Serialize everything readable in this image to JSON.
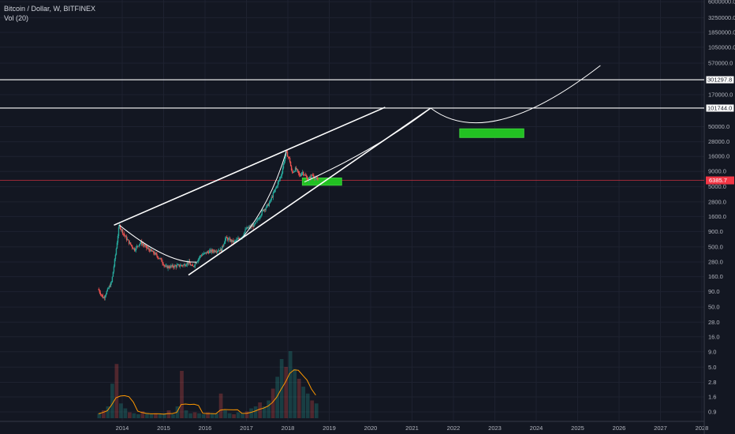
{
  "legend": {
    "symbol": "Bitcoin / Dollar, W, BITFINEX",
    "volume": "Vol (20)"
  },
  "colors": {
    "background": "#131722",
    "grid": "#1e2230",
    "up_candle": "#26a69a",
    "down_candle": "#ef5350",
    "drawing_line": "#ffffff",
    "target_box": "#22c122",
    "current_price": "#f23645",
    "volume_ma": "#ff9800"
  },
  "chart_data": {
    "type": "candlestick",
    "y_scale": "log",
    "price_axis_labels": [
      "6000000.0",
      "3250000.0",
      "1850000.0",
      "1050000.0",
      "570000.0",
      "170000.0",
      "50000.0",
      "28000.0",
      "16000.0",
      "9000.0",
      "5000.0",
      "2800.0",
      "1600.0",
      "900.0",
      "500.0",
      "280.0",
      "160.0",
      "90.0",
      "50.0",
      "28.0",
      "16.0",
      "9.0",
      "5.0",
      "2.8",
      "1.6",
      "0.9"
    ],
    "x_axis_labels": [
      "2014",
      "2015",
      "2016",
      "2017",
      "2018",
      "2019",
      "2020",
      "2021",
      "2022",
      "2023",
      "2024",
      "2025",
      "2026",
      "2027",
      "2028"
    ],
    "horizontal_levels": [
      {
        "label": "301297.8",
        "value": 301297.8
      },
      {
        "label": "101744.0",
        "value": 101744.0
      }
    ],
    "current_price": {
      "label": "6385.7",
      "value": 6385.7
    },
    "price_path": [
      {
        "t": 2013.42,
        "p": 100
      },
      {
        "t": 2013.55,
        "p": 70
      },
      {
        "t": 2013.75,
        "p": 130
      },
      {
        "t": 2013.85,
        "p": 400
      },
      {
        "t": 2013.93,
        "p": 1150
      },
      {
        "t": 2014.05,
        "p": 800
      },
      {
        "t": 2014.15,
        "p": 620
      },
      {
        "t": 2014.3,
        "p": 450
      },
      {
        "t": 2014.45,
        "p": 600
      },
      {
        "t": 2014.6,
        "p": 480
      },
      {
        "t": 2014.8,
        "p": 380
      },
      {
        "t": 2014.95,
        "p": 300
      },
      {
        "t": 2015.05,
        "p": 230
      },
      {
        "t": 2015.3,
        "p": 240
      },
      {
        "t": 2015.5,
        "p": 250
      },
      {
        "t": 2015.6,
        "p": 280
      },
      {
        "t": 2015.7,
        "p": 230
      },
      {
        "t": 2015.9,
        "p": 360
      },
      {
        "t": 2016.1,
        "p": 420
      },
      {
        "t": 2016.4,
        "p": 450
      },
      {
        "t": 2016.5,
        "p": 700
      },
      {
        "t": 2016.7,
        "p": 600
      },
      {
        "t": 2016.9,
        "p": 750
      },
      {
        "t": 2017.0,
        "p": 1000
      },
      {
        "t": 2017.2,
        "p": 1150
      },
      {
        "t": 2017.4,
        "p": 2000
      },
      {
        "t": 2017.55,
        "p": 2600
      },
      {
        "t": 2017.7,
        "p": 4500
      },
      {
        "t": 2017.85,
        "p": 8000
      },
      {
        "t": 2017.96,
        "p": 19000
      },
      {
        "t": 2018.05,
        "p": 14000
      },
      {
        "t": 2018.1,
        "p": 8500
      },
      {
        "t": 2018.2,
        "p": 10000
      },
      {
        "t": 2018.3,
        "p": 7500
      },
      {
        "t": 2018.35,
        "p": 9000
      },
      {
        "t": 2018.5,
        "p": 6500
      },
      {
        "t": 2018.6,
        "p": 8000
      },
      {
        "t": 2018.72,
        "p": 6385.7
      }
    ],
    "drawings": {
      "wedge_upper": [
        {
          "t": 2013.8,
          "p": 1150
        },
        {
          "t": 2020.35,
          "p": 105000
        }
      ],
      "wedge_lower": [
        {
          "t": 2015.6,
          "p": 170
        },
        {
          "t": 2021.45,
          "p": 101744
        }
      ],
      "arc_2014_2015": [
        {
          "t": 2013.93,
          "p": 1150
        },
        {
          "t": 2015.1,
          "p": 260
        },
        {
          "t": 2015.8,
          "p": 280
        }
      ],
      "parabola_2017": [
        {
          "t": 2016.9,
          "p": 700
        },
        {
          "t": 2017.6,
          "p": 2800
        },
        {
          "t": 2017.96,
          "p": 19000
        }
      ],
      "projection_up": [
        {
          "t": 2018.4,
          "p": 6000
        },
        {
          "t": 2020.2,
          "p": 22000
        },
        {
          "t": 2021.45,
          "p": 101744
        }
      ],
      "projection_bowl": [
        {
          "t": 2021.45,
          "p": 101744
        },
        {
          "t": 2022.85,
          "p": 19000
        },
        {
          "t": 2025.55,
          "p": 520000
        }
      ]
    },
    "target_boxes": [
      {
        "t0": 2018.35,
        "t1": 2019.3,
        "p_low": 5300,
        "p_high": 7000
      },
      {
        "t0": 2022.15,
        "t1": 2023.7,
        "p_low": 33000,
        "p_high": 46000
      }
    ],
    "volume": {
      "values": [
        0.05,
        0.08,
        0.12,
        0.35,
        0.55,
        0.15,
        0.1,
        0.06,
        0.05,
        0.04,
        0.07,
        0.05,
        0.04,
        0.05,
        0.04,
        0.05,
        0.08,
        0.04,
        0.12,
        0.48,
        0.08,
        0.05,
        0.06,
        0.05,
        0.04,
        0.06,
        0.05,
        0.05,
        0.25,
        0.08,
        0.05,
        0.04,
        0.06,
        0.05,
        0.07,
        0.1,
        0.12,
        0.16,
        0.12,
        0.18,
        0.3,
        0.42,
        0.6,
        0.52,
        0.68,
        0.5,
        0.4,
        0.32,
        0.25,
        0.18,
        0.15
      ]
    }
  }
}
